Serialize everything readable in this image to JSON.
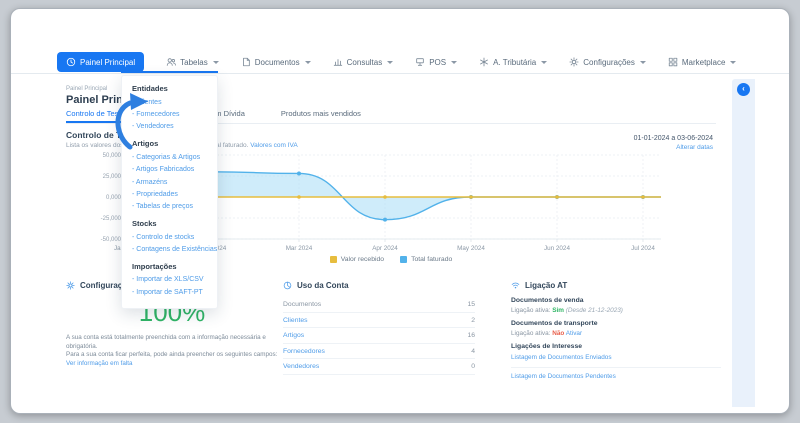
{
  "colors": {
    "accent": "#1877f2",
    "link": "#4f9ce8",
    "chart_blue": "#52b2ea",
    "chart_fill": "#a8dcf6",
    "chart_yellow": "#e7bd3e",
    "green": "#2fb565",
    "red": "#e8604c"
  },
  "navbar": {
    "items": [
      {
        "label": "Painel Principal",
        "icon": "clock-icon",
        "active": true,
        "caret": false
      },
      {
        "label": "Tabelas",
        "icon": "users-icon",
        "active": false,
        "caret": true,
        "open": true
      },
      {
        "label": "Documentos",
        "icon": "document-icon",
        "active": false,
        "caret": true
      },
      {
        "label": "Consultas",
        "icon": "bar-chart-icon",
        "active": false,
        "caret": true
      },
      {
        "label": "POS",
        "icon": "pos-icon",
        "active": false,
        "caret": true
      },
      {
        "label": "A. Tributária",
        "icon": "tax-icon",
        "active": false,
        "caret": true
      },
      {
        "label": "Configurações",
        "icon": "gear-icon",
        "active": false,
        "caret": true
      },
      {
        "label": "Marketplace",
        "icon": "marketplace-icon",
        "active": false,
        "caret": true
      }
    ]
  },
  "menu": {
    "sections": [
      {
        "title": "Entidades",
        "items": [
          "Clientes",
          "Fornecedores",
          "Vendedores"
        ]
      },
      {
        "title": "Artigos",
        "items": [
          "Categorias & Artigos",
          "Artigos Fabricados",
          "Armazéns",
          "Propriedades",
          "Tabelas de preços"
        ]
      },
      {
        "title": "Stocks",
        "items": [
          "Controlo de stocks",
          "Contagens de Existências"
        ]
      },
      {
        "title": "Importações",
        "items": [
          "Importar de XLS/CSV",
          "Importar de SAFT-PT"
        ]
      }
    ]
  },
  "page": {
    "breadcrumb": "Painel Principal",
    "title": "Painel Principal"
  },
  "tabs": [
    "Controlo de Tesouraria",
    "Montante em Dívida",
    "Produtos mais vendidos"
  ],
  "section": {
    "title": "Controlo de Tesouraria",
    "subtitle": "Lista os valores dos documentos pagos e o valor total faturado.",
    "subtitle_link": "Valores com IVA",
    "date_range": "01-01-2024 a 03-06-2024",
    "change_dates": "Alterar datas"
  },
  "chart_data": {
    "type": "area",
    "x": [
      "Jan 2024",
      "Feb 2024",
      "Mar 2024",
      "Apr 2024",
      "May 2024",
      "Jun 2024",
      "Jul 2024"
    ],
    "series": [
      {
        "name": "Valor recebido",
        "color_key": "chart_yellow",
        "values": [
          0,
          0,
          0,
          0,
          0,
          0,
          0
        ]
      },
      {
        "name": "Total faturado",
        "color_key": "chart_blue",
        "values": [
          30000,
          30000,
          28000,
          -27000,
          0,
          0,
          0
        ]
      }
    ],
    "ylabels": [
      "50,000",
      "25,000",
      "0,000",
      "-25,000",
      "-50,000"
    ],
    "ylim": [
      -50000,
      50000
    ],
    "grid": true,
    "legend_position": "bottom"
  },
  "config_panel": {
    "title": "Configurações",
    "percent": "100%",
    "line1": "A sua conta está totalmente preenchida com a informação necessária e obrigatória.",
    "line2": "Para a sua conta ficar perfeita, pode ainda preencher os seguintes campos:",
    "link": "Ver informação em falta"
  },
  "usage_panel": {
    "title": "Uso da Conta",
    "rows": [
      {
        "label": "Documentos",
        "value": "15",
        "link": false
      },
      {
        "label": "Clientes",
        "value": "2",
        "link": true
      },
      {
        "label": "Artigos",
        "value": "16",
        "link": true
      },
      {
        "label": "Fornecedores",
        "value": "4",
        "link": true
      },
      {
        "label": "Vendedores",
        "value": "0",
        "link": true
      }
    ]
  },
  "at_panel": {
    "title": "Ligação AT",
    "venda_header": "Documentos de venda",
    "venda_label": "Ligação ativa:",
    "venda_status": "Sim",
    "venda_note": "(Desde 21-12-2023)",
    "transporte_header": "Documentos de transporte",
    "transporte_label": "Ligação ativa:",
    "transporte_status": "Não",
    "transporte_action": "Ativar",
    "interesse_header": "Ligações de Interesse",
    "link_enviados": "Listagem de Documentos Enviados",
    "link_pendentes": "Listagem de Documentos Pendentes"
  }
}
